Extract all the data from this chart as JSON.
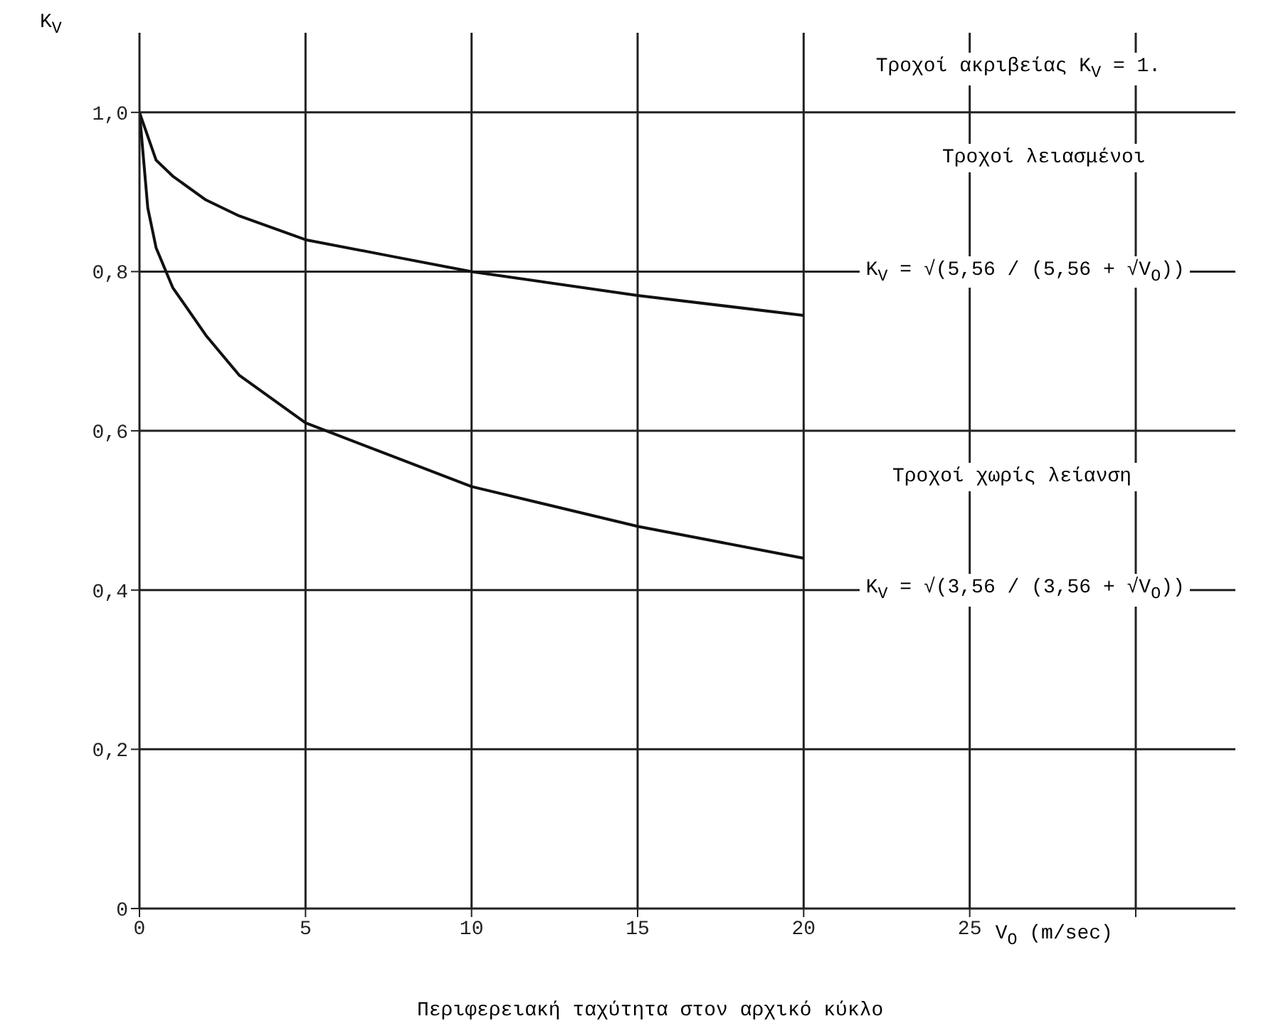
{
  "chart_data": {
    "type": "line",
    "ylabel": "K$_{V}$",
    "xlabel": "Περιφερειακή ταχύτητα στον αρχικό κύκλο",
    "annotations": [
      "Τροχοί ακριβείας  K$_{V}$ = 1.",
      "Τροχοί λειασμένοι",
      "K$_{V}$ = √(5,56 / (5,56 + √V$_{O}$))",
      "Τροχοί χωρίς λείανση",
      "K$_{V}$ = √(3,56 / (3,56 + √V$_{O}$))",
      "V$_{O}$ (m/sec)"
    ],
    "series": [
      {
        "color": "#111111",
        "x": [
          0,
          0.5,
          1,
          2,
          3,
          5,
          7.5,
          10,
          15,
          20
        ],
        "values": [
          1.0,
          0.94,
          0.92,
          0.89,
          0.87,
          0.84,
          0.82,
          0.8,
          0.77,
          0.745
        ]
      },
      {
        "color": "#111111",
        "x": [
          0,
          0.25,
          0.5,
          1,
          2,
          3,
          5,
          7.5,
          10,
          15,
          20
        ],
        "values": [
          1.0,
          0.88,
          0.83,
          0.78,
          0.72,
          0.67,
          0.61,
          0.57,
          0.53,
          0.48,
          0.44
        ]
      }
    ],
    "xlim": [
      0,
      33
    ],
    "xticks": [
      0,
      5,
      10,
      15,
      20,
      25,
      {
        "value": 30,
        "label": null
      }
    ],
    "ylim": [
      0,
      1.1
    ],
    "yticks": [
      0,
      {
        "value": 0.2,
        "label": "0,2"
      },
      {
        "value": 0.4,
        "label": "0,4"
      },
      {
        "value": 0.6,
        "label": "0,6"
      },
      {
        "value": 0.8,
        "label": "0,8"
      },
      {
        "value": 1,
        "label": "1,0"
      }
    ],
    "grid": true,
    "marker": "none",
    "line_style": "solid"
  }
}
